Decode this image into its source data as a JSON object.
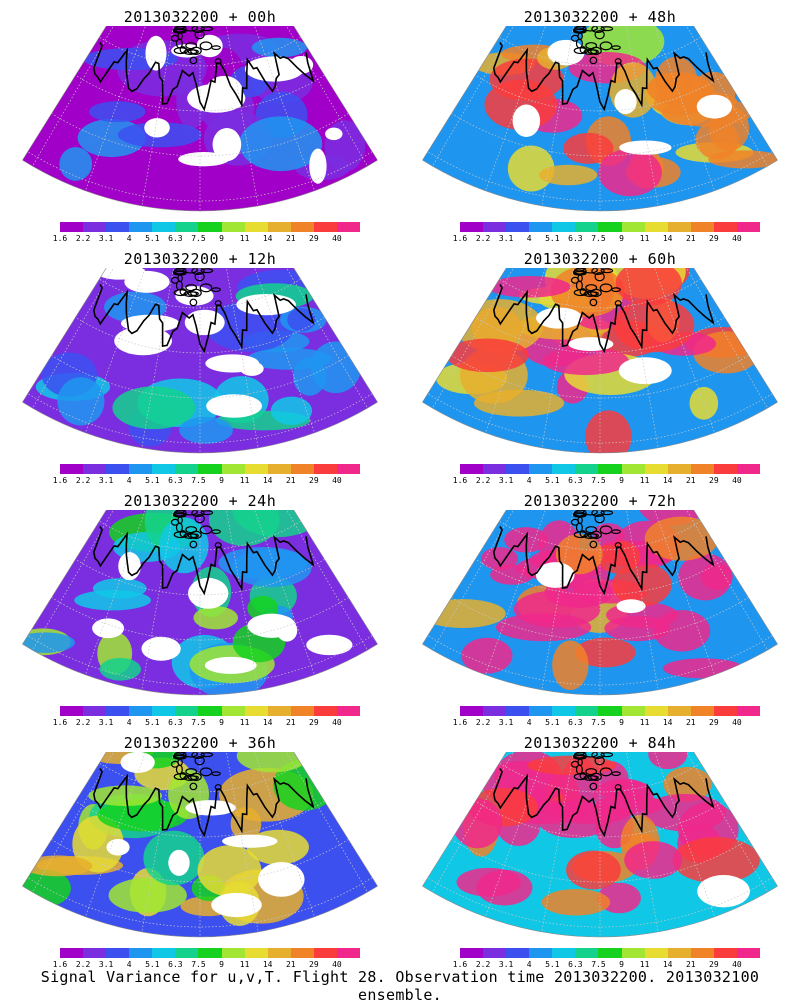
{
  "panels": [
    {
      "title": "2013032200 + 00h",
      "intensity": 0.0
    },
    {
      "title": "2013032200 + 48h",
      "intensity": 0.62
    },
    {
      "title": "2013032200 + 12h",
      "intensity": 0.15
    },
    {
      "title": "2013032200 + 60h",
      "intensity": 0.72
    },
    {
      "title": "2013032200 + 24h",
      "intensity": 0.3
    },
    {
      "title": "2013032200 + 72h",
      "intensity": 0.82
    },
    {
      "title": "2013032200 + 36h",
      "intensity": 0.45
    },
    {
      "title": "2013032200 + 84h",
      "intensity": 0.92
    }
  ],
  "colorbar": {
    "colors": [
      "#a000c8",
      "#7a2ee0",
      "#3c50f0",
      "#1e96f0",
      "#10c8e6",
      "#14d28c",
      "#14d21e",
      "#a0e632",
      "#e6dc32",
      "#e6af2d",
      "#f08228",
      "#fa3c3c",
      "#f0288c"
    ],
    "tick_labels": [
      "1.6",
      "2.2",
      "3.1",
      "4",
      "5.1",
      "6.3",
      "7.5",
      "9",
      "11",
      "14",
      "21",
      "29",
      "40"
    ]
  },
  "footer": {
    "caption": "Signal Variance for u,v,T. Flight 28. Observation time 2013032200. 2013032100 ensemble."
  }
}
